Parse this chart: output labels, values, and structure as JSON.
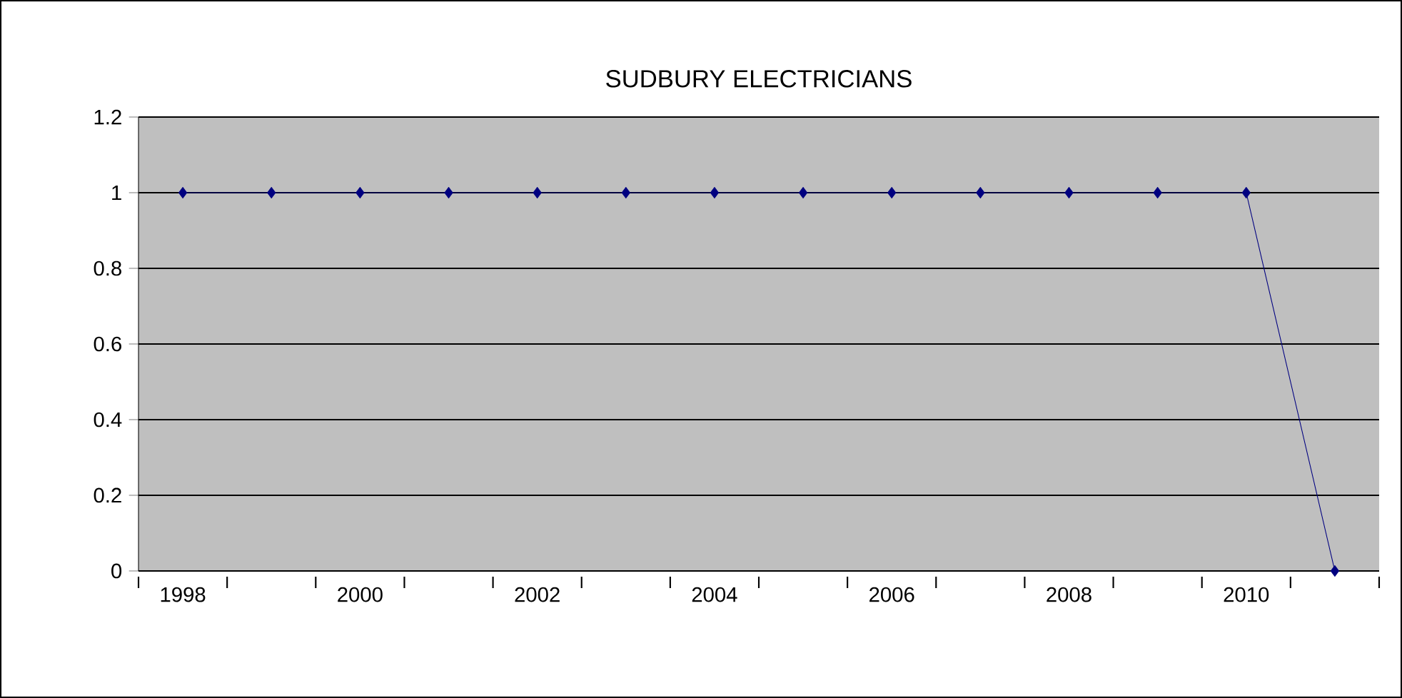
{
  "chart_data": {
    "type": "line",
    "title": "SUDBURY ELECTRICIANS",
    "categories": [
      "1998",
      null,
      "2000",
      null,
      "2002",
      null,
      "2004",
      null,
      "2006",
      null,
      "2008",
      null,
      "2010",
      null
    ],
    "series": [
      {
        "color": "#000080",
        "values": [
          1,
          1,
          1,
          1,
          1,
          1,
          1,
          1,
          1,
          1,
          1,
          1,
          1,
          0
        ]
      }
    ],
    "ylim": [
      0,
      1.2
    ],
    "yticks": [
      0,
      0.2,
      0.4,
      0.6,
      0.8,
      1,
      1.2
    ],
    "grid": "y",
    "marker": "diamond",
    "line_style": "solid"
  }
}
